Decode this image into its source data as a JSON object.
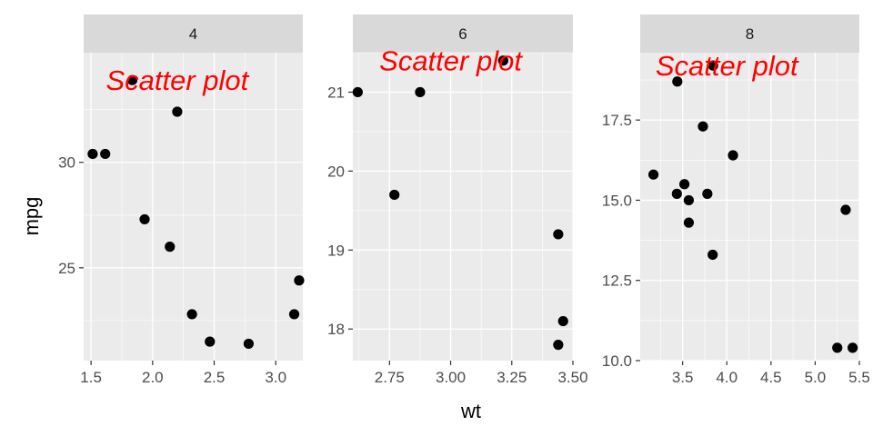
{
  "chart_data": {
    "type": "scatter",
    "xlabel": "wt",
    "ylabel": "mpg",
    "facet_scales": "free",
    "grid": true,
    "annotation": "Scatter plot",
    "colors": {
      "point": "#000000",
      "annotation": "#ff0000",
      "panel": "#ebebeb",
      "strip": "#d9d9d9"
    },
    "panels": [
      {
        "label": "4",
        "xlim": [
          1.44,
          3.22
        ],
        "ylim": [
          20.6,
          35.2
        ],
        "xticks": [
          1.5,
          2.0,
          2.5,
          3.0
        ],
        "xtick_labels": [
          "1.5",
          "2.0",
          "2.5",
          "3.0"
        ],
        "yticks": [
          25,
          30
        ],
        "ytick_labels": [
          "25",
          "30"
        ],
        "annotation_at": [
          2.2,
          33.9
        ],
        "points": [
          {
            "x": 1.513,
            "y": 30.4
          },
          {
            "x": 1.615,
            "y": 30.4
          },
          {
            "x": 1.835,
            "y": 33.9
          },
          {
            "x": 1.935,
            "y": 27.3
          },
          {
            "x": 2.14,
            "y": 26.0
          },
          {
            "x": 2.2,
            "y": 32.4
          },
          {
            "x": 2.32,
            "y": 22.8
          },
          {
            "x": 2.465,
            "y": 21.5
          },
          {
            "x": 2.78,
            "y": 21.4
          },
          {
            "x": 3.15,
            "y": 22.8
          },
          {
            "x": 3.19,
            "y": 24.4
          }
        ]
      },
      {
        "label": "6",
        "xlim": [
          2.6,
          3.5
        ],
        "ylim": [
          17.6,
          21.5
        ],
        "xticks": [
          2.75,
          3.0,
          3.25,
          3.5
        ],
        "xtick_labels": [
          "2.75",
          "3.00",
          "3.25",
          "3.50"
        ],
        "yticks": [
          18,
          19,
          20,
          21
        ],
        "ytick_labels": [
          "18",
          "19",
          "20",
          "21"
        ],
        "annotation_at": [
          3.0,
          21.4
        ],
        "points": [
          {
            "x": 2.62,
            "y": 21.0
          },
          {
            "x": 2.77,
            "y": 19.7
          },
          {
            "x": 2.875,
            "y": 21.0
          },
          {
            "x": 3.215,
            "y": 21.4
          },
          {
            "x": 3.44,
            "y": 19.2
          },
          {
            "x": 3.44,
            "y": 17.8
          },
          {
            "x": 3.46,
            "y": 18.1
          }
        ]
      },
      {
        "label": "8",
        "xlim": [
          3.02,
          5.5
        ],
        "ylim": [
          10.0,
          19.6
        ],
        "xticks": [
          3.5,
          4.0,
          4.5,
          5.0,
          5.5
        ],
        "xtick_labels": [
          "3.5",
          "4.0",
          "4.5",
          "5.0",
          "5.5"
        ],
        "yticks": [
          10.0,
          12.5,
          15.0,
          17.5
        ],
        "ytick_labels": [
          "10.0",
          "12.5",
          "15.0",
          "17.5"
        ],
        "annotation_at": [
          4.0,
          19.2
        ],
        "points": [
          {
            "x": 3.17,
            "y": 15.8
          },
          {
            "x": 3.435,
            "y": 15.2
          },
          {
            "x": 3.44,
            "y": 18.7
          },
          {
            "x": 3.52,
            "y": 15.5
          },
          {
            "x": 3.57,
            "y": 15.0
          },
          {
            "x": 3.57,
            "y": 14.3
          },
          {
            "x": 3.73,
            "y": 17.3
          },
          {
            "x": 3.78,
            "y": 15.2
          },
          {
            "x": 3.84,
            "y": 13.3
          },
          {
            "x": 3.845,
            "y": 19.2
          },
          {
            "x": 4.07,
            "y": 16.4
          },
          {
            "x": 5.25,
            "y": 10.4
          },
          {
            "x": 5.345,
            "y": 14.7
          },
          {
            "x": 5.424,
            "y": 10.4
          }
        ]
      }
    ]
  }
}
